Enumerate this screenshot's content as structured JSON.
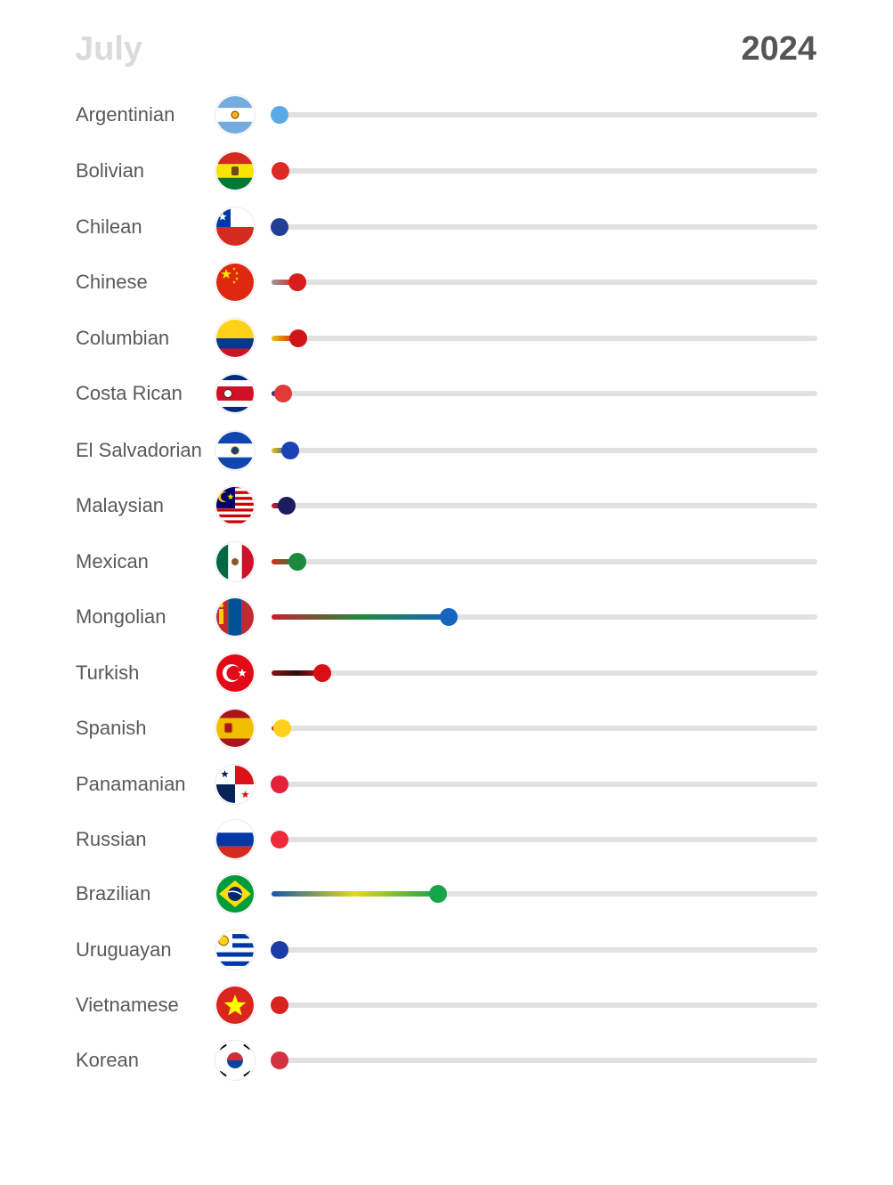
{
  "header": {
    "month": "July",
    "year": "2024"
  },
  "chart_data": {
    "type": "bar",
    "title": "",
    "xlabel": "",
    "ylabel": "",
    "xlim": [
      0,
      100
    ],
    "categories": [
      "Argentinian",
      "Bolivian",
      "Chilean",
      "Chinese",
      "Columbian",
      "Costa Rican",
      "El Salvadorian",
      "Malaysian",
      "Mexican",
      "Mongolian",
      "Turkish",
      "Spanish",
      "Panamanian",
      "Russian",
      "Brazilian",
      "Uruguayan",
      "Vietnamese",
      "Korean"
    ],
    "values": [
      1.5,
      1.6,
      1.5,
      4.8,
      4.9,
      2.2,
      3.4,
      2.7,
      4.7,
      32.5,
      9.3,
      1.9,
      1.5,
      1.5,
      30.5,
      1.5,
      1.5,
      1.5
    ],
    "bars": [
      {
        "label": "Argentinian",
        "flag_icon": "argentina-flag-icon",
        "dot": "#5aaae8",
        "fill": [
          "#5aaae8",
          "#5aaae8"
        ]
      },
      {
        "label": "Bolivian",
        "flag_icon": "bolivia-flag-icon",
        "dot": "#dd2a25",
        "fill": [
          "#dd2a25",
          "#dd2a25"
        ]
      },
      {
        "label": "Chilean",
        "flag_icon": "chile-flag-icon",
        "dot": "#233f95",
        "fill": [
          "#233f95",
          "#233f95"
        ]
      },
      {
        "label": "Chinese",
        "flag_icon": "china-flag-icon",
        "dot": "#d91d1d",
        "fill": [
          "#9a9a9a",
          "#d91d1d"
        ]
      },
      {
        "label": "Columbian",
        "flag_icon": "colombia-flag-icon",
        "dot": "#d11515",
        "fill": [
          "#e5c81a",
          "#d11515"
        ]
      },
      {
        "label": "Costa Rican",
        "flag_icon": "costa-rica-flag-icon",
        "dot": "#e03a3a",
        "fill": [
          "#1d2a80",
          "#e03a3a"
        ]
      },
      {
        "label": "El Salvadorian",
        "flag_icon": "el-salvador-flag-icon",
        "dot": "#1b43b6",
        "fill": [
          "#e5c81a",
          "#1b43b6"
        ]
      },
      {
        "label": "Malaysian",
        "flag_icon": "malaysia-flag-icon",
        "dot": "#1d1c5e",
        "fill": [
          "#cc2233",
          "#1d1c5e"
        ]
      },
      {
        "label": "Mexican",
        "flag_icon": "mexico-flag-icon",
        "dot": "#1b8a3e",
        "fill": [
          "#d52b1e",
          "#1b8a3e"
        ]
      },
      {
        "label": "Mongolian",
        "flag_icon": "mongolia-flag-icon",
        "dot": "#1565c0",
        "fill": [
          "#cc1f2a",
          "#1e8c3a",
          "#1565c0"
        ]
      },
      {
        "label": "Turkish",
        "flag_icon": "turkey-flag-icon",
        "dot": "#d90e16",
        "fill": [
          "#8a1515",
          "#2a0a0a",
          "#d90e16"
        ]
      },
      {
        "label": "Spanish",
        "flag_icon": "spain-flag-icon",
        "dot": "#ffd11a",
        "fill": [
          "#d42a20",
          "#ffd11a"
        ]
      },
      {
        "label": "Panamanian",
        "flag_icon": "panama-flag-icon",
        "dot": "#e5203a",
        "fill": [
          "#e5203a",
          "#e5203a"
        ]
      },
      {
        "label": "Russian",
        "flag_icon": "russia-flag-icon",
        "dot": "#ee2a3a",
        "fill": [
          "#ee2a3a",
          "#ee2a3a"
        ]
      },
      {
        "label": "Brazilian",
        "flag_icon": "brazil-flag-icon",
        "dot": "#16a34a",
        "fill": [
          "#1757a8",
          "#e3d91a",
          "#16a34a"
        ]
      },
      {
        "label": "Uruguayan",
        "flag_icon": "uruguay-flag-icon",
        "dot": "#1e3ca8",
        "fill": [
          "#1e3ca8",
          "#1e3ca8"
        ]
      },
      {
        "label": "Vietnamese",
        "flag_icon": "vietnam-flag-icon",
        "dot": "#d8241f",
        "fill": [
          "#d8241f",
          "#d8241f"
        ]
      },
      {
        "label": "Korean",
        "flag_icon": "south-korea-flag-icon",
        "dot": "#d23340",
        "fill": [
          "#d23340",
          "#d23340"
        ]
      }
    ]
  }
}
